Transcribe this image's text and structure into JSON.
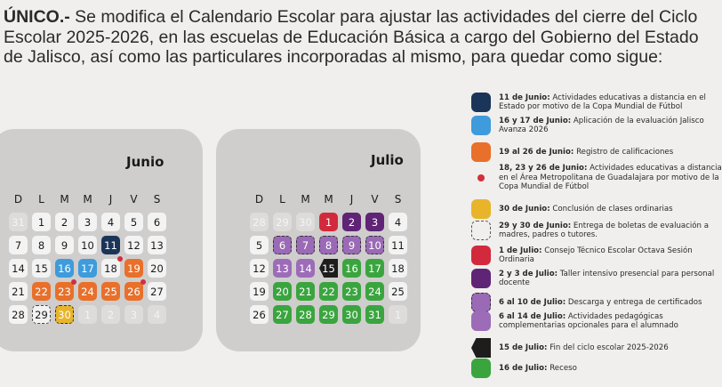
{
  "intro": {
    "bold": "ÚNICO.-",
    "lines": [
      " Se modifica el Calendario Escolar para ajustar las actividades del cierre del Ciclo",
      "Escolar 2025-2026, en las escuelas de Educación Básica a cargo del Gobierno del Estado",
      "de Jalisco, así como las particulares incorporadas al mismo, para quedar como sigue:"
    ]
  },
  "weekdays": [
    "D",
    "L",
    "M",
    "M",
    "J",
    "V",
    "S"
  ],
  "calendars": [
    {
      "month": "Junio",
      "weeks": [
        [
          {
            "n": "31",
            "s": "faded"
          },
          {
            "n": "1"
          },
          {
            "n": "2"
          },
          {
            "n": "3"
          },
          {
            "n": "4"
          },
          {
            "n": "5"
          },
          {
            "n": "6"
          }
        ],
        [
          {
            "n": "7"
          },
          {
            "n": "8"
          },
          {
            "n": "9"
          },
          {
            "n": "10"
          },
          {
            "n": "11",
            "s": "navy"
          },
          {
            "n": "12"
          },
          {
            "n": "13"
          }
        ],
        [
          {
            "n": "14"
          },
          {
            "n": "15"
          },
          {
            "n": "16",
            "s": "blue"
          },
          {
            "n": "17",
            "s": "blue"
          },
          {
            "n": "18",
            "dot": true
          },
          {
            "n": "19",
            "s": "orange"
          },
          {
            "n": "20"
          }
        ],
        [
          {
            "n": "21"
          },
          {
            "n": "22",
            "s": "orange"
          },
          {
            "n": "23",
            "s": "orange",
            "dot": true
          },
          {
            "n": "24",
            "s": "orange"
          },
          {
            "n": "25",
            "s": "orange"
          },
          {
            "n": "26",
            "s": "orange",
            "dot": true
          },
          {
            "n": "27"
          }
        ],
        [
          {
            "n": "28"
          },
          {
            "n": "29",
            "s": "dashed"
          },
          {
            "n": "30",
            "s": "yellow"
          },
          {
            "n": "1",
            "s": "faded"
          },
          {
            "n": "2",
            "s": "faded"
          },
          {
            "n": "3",
            "s": "faded"
          },
          {
            "n": "4",
            "s": "faded"
          }
        ]
      ]
    },
    {
      "month": "Julio",
      "weeks": [
        [
          {
            "n": "28",
            "s": "faded"
          },
          {
            "n": "29",
            "s": "faded"
          },
          {
            "n": "30",
            "s": "faded"
          },
          {
            "n": "1",
            "s": "red"
          },
          {
            "n": "2",
            "s": "darkpurple"
          },
          {
            "n": "3",
            "s": "darkpurple"
          },
          {
            "n": "4"
          }
        ],
        [
          {
            "n": "5"
          },
          {
            "n": "6",
            "s": "purpledash"
          },
          {
            "n": "7",
            "s": "purpledash"
          },
          {
            "n": "8",
            "s": "purpledash"
          },
          {
            "n": "9",
            "s": "purpledash"
          },
          {
            "n": "10",
            "s": "purpledash"
          },
          {
            "n": "11"
          }
        ],
        [
          {
            "n": "12"
          },
          {
            "n": "13",
            "s": "purple"
          },
          {
            "n": "14",
            "s": "purple"
          },
          {
            "n": "15",
            "s": "black"
          },
          {
            "n": "16",
            "s": "green"
          },
          {
            "n": "17",
            "s": "green"
          },
          {
            "n": "18"
          }
        ],
        [
          {
            "n": "19"
          },
          {
            "n": "20",
            "s": "green"
          },
          {
            "n": "21",
            "s": "green"
          },
          {
            "n": "22",
            "s": "green"
          },
          {
            "n": "23",
            "s": "green"
          },
          {
            "n": "24",
            "s": "green"
          },
          {
            "n": "25"
          }
        ],
        [
          {
            "n": "26"
          },
          {
            "n": "27",
            "s": "green"
          },
          {
            "n": "28",
            "s": "green"
          },
          {
            "n": "29",
            "s": "green"
          },
          {
            "n": "30",
            "s": "green"
          },
          {
            "n": "31",
            "s": "green"
          },
          {
            "n": "1",
            "s": "faded"
          }
        ]
      ]
    }
  ],
  "colors": {
    "navy": "#1b3559",
    "blue": "#3e9bdc",
    "orange": "#e8702a",
    "yellow": "#e8b42a",
    "dot": "#d32f3a",
    "red": "#d22a3c",
    "darkpurple": "#5f2476",
    "purple": "#9c6cb8",
    "black": "#1d1d1d",
    "green": "#3aa53f"
  },
  "legend": [
    {
      "s": "navy",
      "b": "11 de Junio:",
      "t": [
        "Actividades educativas a distancia en el",
        "Estado por motivo de la Copa Mundial de Fútbol"
      ]
    },
    {
      "s": "blue",
      "b": "16 y 17 de Junio:",
      "t": [
        "Aplicación de la evaluación Jalisco",
        "Avanza 2026"
      ]
    },
    {
      "s": "orange",
      "b": "19 al 26 de Junio:",
      "t": [
        "Registro de calificaciones"
      ]
    },
    {
      "s": "dot",
      "b": "18, 23 y 26 de Junio:",
      "t": [
        "Actividades educativas a distancia",
        "en el Área Metropolitana de Guadalajara por motivo de la",
        "Copa Mundial de Fútbol"
      ]
    },
    {
      "s": "yellow",
      "b": "30 de Junio:",
      "t": [
        "Conclusión de clases ordinarias"
      ]
    },
    {
      "s": "dashed",
      "b": "29 y 30 de Junio:",
      "t": [
        "Entrega de boletas de evaluación a",
        "madres, padres o tutores."
      ]
    },
    {
      "s": "red",
      "b": "1 de Julio:",
      "t": [
        "Consejo Técnico Escolar Octava Sesión",
        "Ordinaria"
      ]
    },
    {
      "s": "darkpurple",
      "b": "2 y 3 de Julio:",
      "t": [
        "Taller intensivo presencial para personal",
        "docente"
      ]
    },
    {
      "s": "purpledash",
      "b": "6 al 10 de Julio:",
      "t": [
        "Descarga y entrega de certificados"
      ]
    },
    {
      "s": "purple",
      "b": "6 al 14 de Julio:",
      "t": [
        "Actividades pedagógicas",
        "complementarias opcionales para el alumnado"
      ]
    },
    {
      "s": "black",
      "b": "15 de Julio:",
      "t": [
        "Fin del ciclo escolar 2025-2026"
      ]
    },
    {
      "s": "green",
      "b": "16 de Julio:",
      "t": [
        "Receso"
      ]
    }
  ]
}
